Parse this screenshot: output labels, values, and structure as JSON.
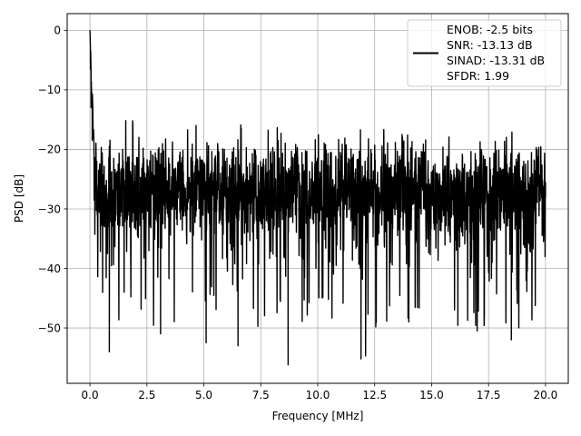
{
  "chart_data": {
    "type": "line",
    "title": "",
    "xlabel": "Frequency [MHz]",
    "ylabel": "PSD [dB]",
    "xlim": [
      -1.0,
      21.0
    ],
    "ylim": [
      -59.3,
      2.8
    ],
    "xticks": [
      0.0,
      2.5,
      5.0,
      7.5,
      10.0,
      12.5,
      15.0,
      17.5,
      20.0
    ],
    "xtick_labels": [
      "0.0",
      "2.5",
      "5.0",
      "7.5",
      "10.0",
      "12.5",
      "15.0",
      "17.5",
      "20.0"
    ],
    "yticks": [
      0,
      -10,
      -20,
      -30,
      -40,
      -50
    ],
    "ytick_labels": [
      "0",
      "−10",
      "−20",
      "−30",
      "−40",
      "−50"
    ],
    "grid": true,
    "legend_position": "top-right",
    "series": [
      {
        "color": "#000000",
        "description": "Noise-floor spectrum from 0 to 20 MHz: peak 0 dB at DC, falling to about -13 dB by 0.05 MHz; floor fluctuates roughly between -15 and -48 dB with a mean near -27 dB; deepest dips about -56 dB near 8.7 MHz and -55 dB near 11.9 MHz.",
        "x_range": [
          0.0,
          20.0
        ],
        "points": [
          [
            0.0,
            0.0
          ],
          [
            0.02,
            -6.5
          ],
          [
            0.05,
            -13.0
          ],
          [
            0.1,
            -18.5
          ],
          [
            0.2,
            -25.0
          ],
          [
            0.3,
            -22.0
          ],
          [
            0.5,
            -28.0
          ],
          [
            0.85,
            -54.0
          ],
          [
            1.5,
            -44.0
          ],
          [
            3.1,
            -51.0
          ],
          [
            5.1,
            -52.5
          ],
          [
            6.5,
            -53.0
          ],
          [
            8.7,
            -56.2
          ],
          [
            11.9,
            -55.2
          ],
          [
            12.1,
            -54.7
          ],
          [
            14.0,
            -49.0
          ],
          [
            17.0,
            -50.5
          ],
          [
            18.5,
            -52.0
          ],
          [
            20.0,
            -28.0
          ]
        ],
        "envelope_top": -15.0,
        "envelope_bottom": -48.0,
        "mean": -27.0
      }
    ],
    "legend": {
      "handle_color": "#000000",
      "lines": [
        "ENOB: -2.5 bits",
        "SNR: -13.13 dB",
        "SINAD: -13.31 dB",
        "SFDR: 1.99"
      ]
    }
  }
}
